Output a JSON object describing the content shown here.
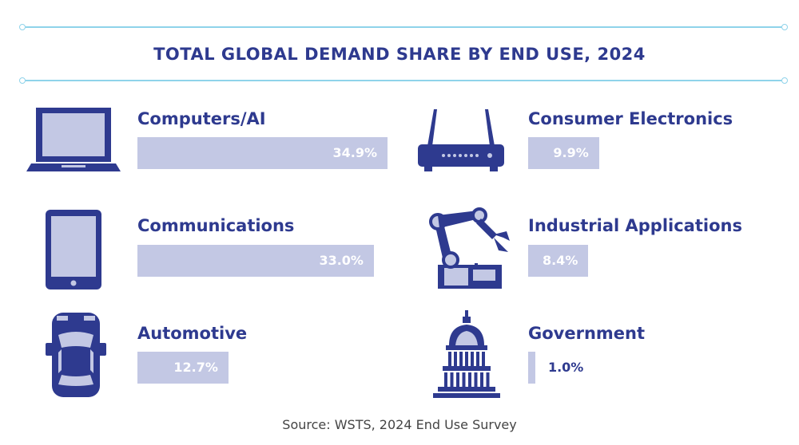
{
  "title": "TOTAL GLOBAL DEMAND SHARE BY END USE, 2024",
  "source": "Source: WSTS, 2024 End Use Survey",
  "colors": {
    "primary": "#2e3a8f",
    "bar": "#c3c8e4",
    "rule": "#8fd3ea"
  },
  "chart_data": {
    "type": "bar",
    "orientation": "horizontal",
    "title": "TOTAL GLOBAL DEMAND SHARE BY END USE, 2024",
    "unit": "%",
    "categories": [
      "Computers/AI",
      "Communications",
      "Automotive",
      "Consumer Electronics",
      "Industrial Applications",
      "Government"
    ],
    "values": [
      34.9,
      33.0,
      12.7,
      9.9,
      8.4,
      1.0
    ],
    "value_labels": [
      "34.9%",
      "33.0%",
      "12.7%",
      "9.9%",
      "8.4%",
      "1.0%"
    ],
    "icons": [
      "laptop-icon",
      "tablet-icon",
      "car-icon",
      "router-icon",
      "robot-arm-icon",
      "capitol-icon"
    ]
  }
}
